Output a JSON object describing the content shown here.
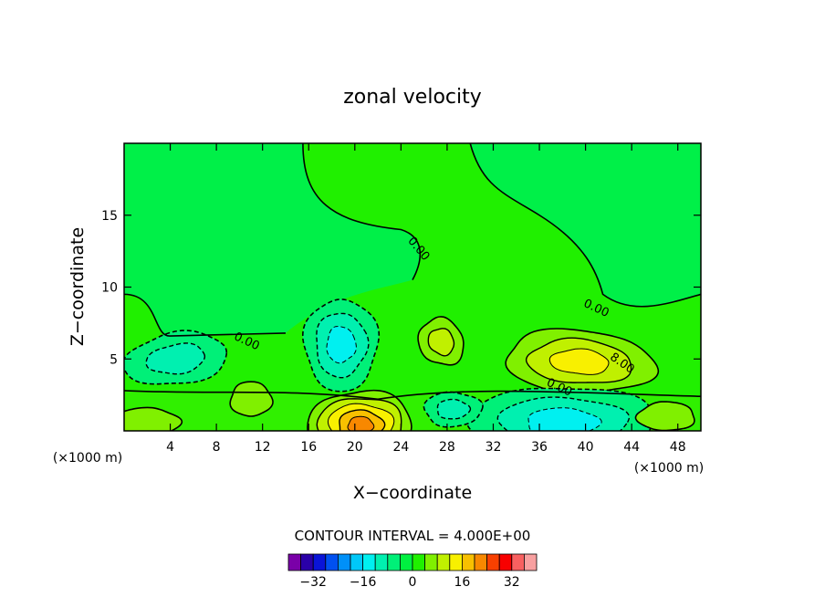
{
  "chart_data": {
    "type": "contour",
    "title": "zonal velocity",
    "xlabel": "X−coordinate",
    "ylabel": "Z−coordinate",
    "x_unit_left": "(×1000 m)",
    "x_unit_right": "(×1000 m)",
    "xlim": [
      0,
      50
    ],
    "ylim": [
      0,
      20
    ],
    "x_ticks": [
      {
        "value": 4,
        "label": "4"
      },
      {
        "value": 8,
        "label": "8"
      },
      {
        "value": 12,
        "label": "12"
      },
      {
        "value": 16,
        "label": "16"
      },
      {
        "value": 20,
        "label": "20"
      },
      {
        "value": 24,
        "label": "24"
      },
      {
        "value": 28,
        "label": "28"
      },
      {
        "value": 32,
        "label": "32"
      },
      {
        "value": 36,
        "label": "36"
      },
      {
        "value": 40,
        "label": "40"
      },
      {
        "value": 44,
        "label": "44"
      },
      {
        "value": 48,
        "label": "48"
      }
    ],
    "y_ticks": [
      {
        "value": 5,
        "label": "5"
      },
      {
        "value": 10,
        "label": "10"
      },
      {
        "value": 15,
        "label": "15"
      }
    ],
    "contour_interval_text": "CONTOUR INTERVAL = 4.000E+00",
    "contour_labels": [
      {
        "x": 25.3,
        "y": 12.5,
        "text": "0.00"
      },
      {
        "x": 10.5,
        "y": 6.0,
        "text": "0.00"
      },
      {
        "x": 40.8,
        "y": 8.3,
        "text": "0.00"
      },
      {
        "x": 37.6,
        "y": 2.8,
        "text": "0.00"
      },
      {
        "x": 43.0,
        "y": 4.5,
        "text": "8.00"
      }
    ],
    "background_value": 0,
    "features": [
      {
        "kind": "min",
        "x": 18.8,
        "y": 6.0,
        "value": -12
      },
      {
        "kind": "max",
        "x": 39.5,
        "y": 4.8,
        "value": 12
      },
      {
        "kind": "max",
        "x": 27.5,
        "y": 6.2,
        "value": 8
      },
      {
        "kind": "min",
        "x": 4.5,
        "y": 5.0,
        "value": -8
      },
      {
        "kind": "max",
        "x": 20.5,
        "y": 0.4,
        "value": 20
      },
      {
        "kind": "min",
        "x": 38.0,
        "y": 0.6,
        "value": -12
      },
      {
        "kind": "min",
        "x": 28.5,
        "y": 1.5,
        "value": -8
      }
    ],
    "colorbar": {
      "levels": [
        -36,
        -32,
        -28,
        -24,
        -20,
        -16,
        -12,
        -8,
        -4,
        0,
        4,
        8,
        12,
        16,
        20,
        24,
        28,
        32,
        36
      ],
      "tick_labels": [
        {
          "value": -32,
          "label": "−32"
        },
        {
          "value": -16,
          "label": "−16"
        },
        {
          "value": 0,
          "label": "0"
        },
        {
          "value": 16,
          "label": "16"
        },
        {
          "value": 32,
          "label": "32"
        }
      ],
      "colors": [
        "#7a00a8",
        "#2a00a8",
        "#0a14d8",
        "#0050f0",
        "#0090f8",
        "#00c8f8",
        "#00f0f0",
        "#00f0b0",
        "#00f078",
        "#00f040",
        "#20f000",
        "#80f000",
        "#c0f000",
        "#f8f000",
        "#f8c000",
        "#f88800",
        "#f84000",
        "#f80000",
        "#f86060",
        "#f8a0a0"
      ]
    }
  }
}
